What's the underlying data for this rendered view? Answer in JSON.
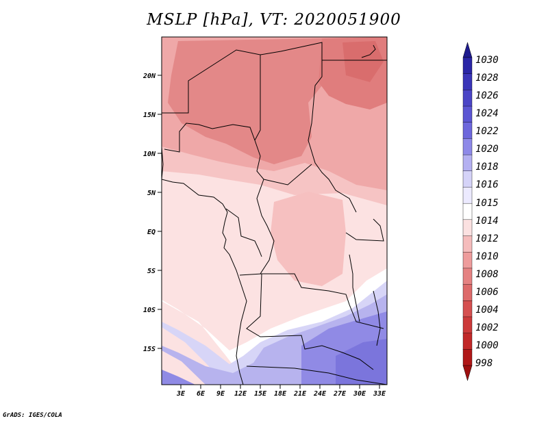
{
  "title": "MSLP [hPa], VT: 2020051900",
  "footer": "GrADS: IGES/COLA",
  "map": {
    "variable": "MSLP",
    "units": "hPa",
    "valid_time": "2020051900",
    "lat_labels": [
      "20N",
      "15N",
      "10N",
      "5N",
      "EQ",
      "5S",
      "10S",
      "15S"
    ],
    "lon_labels": [
      "3E",
      "6E",
      "9E",
      "12E",
      "15E",
      "18E",
      "21E",
      "24E",
      "27E",
      "30E",
      "33E"
    ],
    "lat_range": [
      -19.5,
      24.5
    ],
    "lon_range": [
      0.5,
      34.5
    ]
  },
  "colorbar": {
    "labels": [
      "1030",
      "1028",
      "1026",
      "1024",
      "1022",
      "1020",
      "1018",
      "1016",
      "1015",
      "1014",
      "1012",
      "1010",
      "1008",
      "1006",
      "1004",
      "1002",
      "1000",
      "998"
    ],
    "colors": [
      "#1e1b8f",
      "#2a26a6",
      "#3a35b8",
      "#4b45c6",
      "#5c56d3",
      "#6d67dc",
      "#8e89e8",
      "#b4b0f1",
      "#d5d3f8",
      "#eceaff",
      "#ffffff",
      "#fbe1e1",
      "#f5bcbc",
      "#ee9c9c",
      "#e58282",
      "#dd6a6a",
      "#d55050",
      "#cc3a3a",
      "#c12828",
      "#b01818",
      "#9e1010"
    ]
  }
}
